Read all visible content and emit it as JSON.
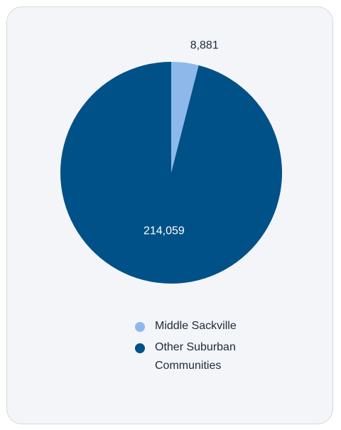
{
  "chart_data": {
    "type": "pie",
    "categories": [
      "Middle Sackville",
      "Other Suburban Communities"
    ],
    "values": [
      8881,
      214059
    ],
    "value_labels": [
      "8,881",
      "214,059"
    ],
    "colors": [
      "#8fb8ea",
      "#005187"
    ],
    "legend_position": "bottom-right",
    "start_angle": "top (12 o'clock), clockwise"
  },
  "legend": {
    "items": [
      {
        "label": "Middle Sackville",
        "color": "#8fb8ea"
      },
      {
        "label": "Other Suburban Communities",
        "color": "#005187"
      }
    ]
  }
}
